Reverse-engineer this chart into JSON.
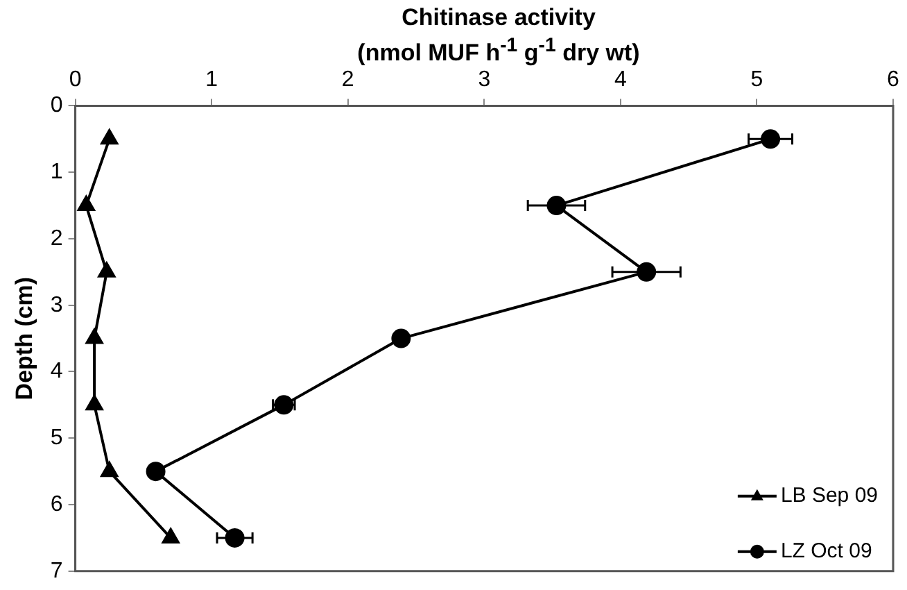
{
  "chart_data": {
    "type": "line",
    "orientation": "horizontal",
    "xlabel": "Chitinase activity\n(nmol MUF h$^{-1}$ g$^{-1}$ dry wt)",
    "ylabel": "Depth (cm)",
    "x": [
      0.5,
      1.5,
      2.5,
      3.5,
      4.5,
      5.5,
      6.5
    ],
    "xlim": [
      0,
      6
    ],
    "xticks": [
      0,
      1,
      2,
      3,
      4,
      5,
      6
    ],
    "ylim": [
      7,
      0
    ],
    "yticks": [
      0,
      1,
      2,
      3,
      4,
      5,
      6,
      7
    ],
    "grid": false,
    "legend": "bottom right",
    "series": [
      {
        "name": "LB Sep 09",
        "color": "#000000",
        "marker": "triangle",
        "values": [
          0.25,
          0.08,
          0.23,
          0.14,
          0.14,
          0.25,
          0.7
        ]
      },
      {
        "name": "LZ Oct 09",
        "color": "#000000",
        "marker": "circle",
        "values": [
          5.1,
          3.53,
          4.19,
          2.39,
          1.53,
          0.59,
          1.17
        ],
        "errors": [
          0.16,
          0.21,
          0.25,
          null,
          0.08,
          null,
          0.13
        ]
      }
    ]
  }
}
